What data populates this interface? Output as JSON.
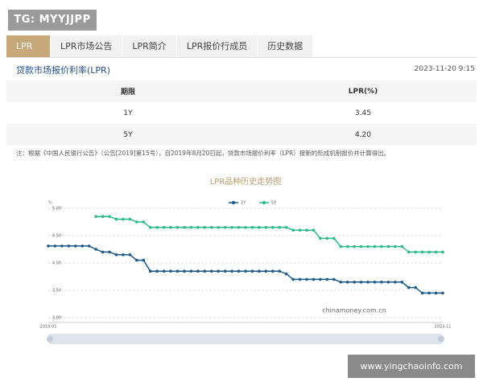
{
  "watermark": "TG: MYYJJPP",
  "tabs": [
    "LPR",
    "LPR市场公告",
    "LPR简介",
    "LPR报价行成员",
    "历史数据"
  ],
  "header": {
    "title": "贷款市场报价利率(LPR)",
    "date": "2023-11-20 9:15"
  },
  "table": {
    "columns": [
      "期限",
      "LPR(%)"
    ],
    "rows": [
      [
        "1Y",
        "3.45"
      ],
      [
        "5Y",
        "4.20"
      ]
    ]
  },
  "note": "注：根据《中国人民银行公告》（公告[2019]第15号），自2019年8月20日起，贷款市场报价利率（LPR）按新的形成机制报价并计算得出。",
  "chart_data": {
    "type": "line",
    "title": "LPR品种历史走势图",
    "y_unit": "%",
    "watermark": "chinamoney.com.cn",
    "categories": [
      "2019-01",
      null,
      null,
      null,
      null,
      null,
      null,
      null,
      null,
      null,
      null,
      null,
      null,
      null,
      null,
      null,
      null,
      null,
      null,
      null,
      null,
      null,
      null,
      null,
      null,
      null,
      null,
      null,
      null,
      null,
      null,
      null,
      null,
      null,
      null,
      null,
      null,
      null,
      null,
      null,
      null,
      null,
      null,
      null,
      null,
      null,
      null,
      null,
      null,
      null,
      null,
      null,
      null,
      null,
      null,
      null,
      null,
      null,
      "2023-11"
    ],
    "series": [
      {
        "name": "1Y",
        "color": "#1f5a8a",
        "values": [
          4.31,
          4.31,
          4.31,
          4.31,
          4.31,
          4.31,
          4.31,
          4.25,
          4.2,
          4.2,
          4.15,
          4.15,
          4.15,
          4.05,
          4.05,
          3.85,
          3.85,
          3.85,
          3.85,
          3.85,
          3.85,
          3.85,
          3.85,
          3.85,
          3.85,
          3.85,
          3.85,
          3.85,
          3.85,
          3.85,
          3.85,
          3.85,
          3.85,
          3.85,
          3.85,
          3.8,
          3.7,
          3.7,
          3.7,
          3.7,
          3.7,
          3.7,
          3.7,
          3.65,
          3.65,
          3.65,
          3.65,
          3.65,
          3.65,
          3.65,
          3.65,
          3.65,
          3.65,
          3.55,
          3.55,
          3.45,
          3.45,
          3.45,
          3.45
        ]
      },
      {
        "name": "5Y",
        "color": "#2dbb8a",
        "values": [
          null,
          null,
          null,
          null,
          null,
          null,
          null,
          4.85,
          4.85,
          4.85,
          4.8,
          4.8,
          4.8,
          4.75,
          4.75,
          4.65,
          4.65,
          4.65,
          4.65,
          4.65,
          4.65,
          4.65,
          4.65,
          4.65,
          4.65,
          4.65,
          4.65,
          4.65,
          4.65,
          4.65,
          4.65,
          4.65,
          4.65,
          4.65,
          4.65,
          4.65,
          4.6,
          4.6,
          4.6,
          4.6,
          4.45,
          4.45,
          4.45,
          4.3,
          4.3,
          4.3,
          4.3,
          4.3,
          4.3,
          4.3,
          4.3,
          4.3,
          4.3,
          4.2,
          4.2,
          4.2,
          4.2,
          4.2,
          4.2
        ]
      }
    ],
    "ylim": [
      3,
      5
    ],
    "yticks": [
      {
        "value": 3,
        "label": "3.00"
      },
      {
        "value": 3.5,
        "label": "3.50"
      },
      {
        "value": 4,
        "label": "4.00"
      },
      {
        "value": 4.5,
        "label": "4.50"
      },
      {
        "value": 5,
        "label": "5.00"
      }
    ],
    "grid": true,
    "legend": "top"
  },
  "footer_watermark": "www.yingchaoinfo.com"
}
